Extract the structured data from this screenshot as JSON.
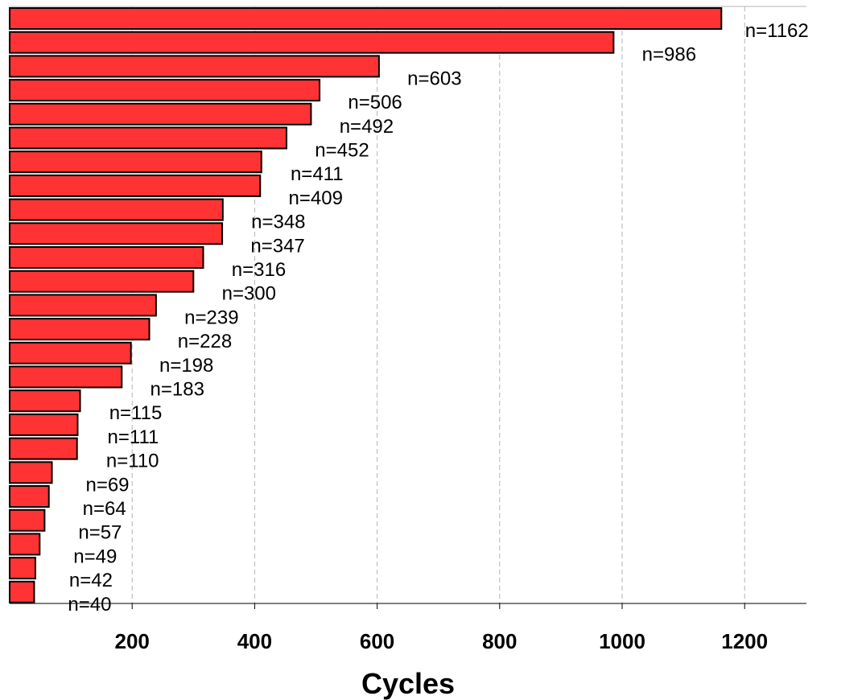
{
  "chart_data": {
    "type": "bar",
    "orientation": "horizontal",
    "title": "",
    "xlabel": "Cycles",
    "ylabel": "",
    "xlim": [
      0,
      1300
    ],
    "xticks": [
      200,
      400,
      600,
      800,
      1000,
      1200
    ],
    "grid": "vertical dashed",
    "bar_color": "#ff3333",
    "values": [
      1162,
      986,
      603,
      506,
      492,
      452,
      411,
      409,
      348,
      347,
      316,
      300,
      239,
      228,
      198,
      183,
      115,
      111,
      110,
      69,
      64,
      57,
      49,
      42,
      40
    ],
    "data_labels": [
      "n=1162",
      "n=986",
      "n=603",
      "n=506",
      "n=492",
      "n=452",
      "n=411",
      "n=409",
      "n=348",
      "n=347",
      "n=316",
      "n=300",
      "n=239",
      "n=228",
      "n=198",
      "n=183",
      "n=115",
      "n=111",
      "n=110",
      "n=69",
      "n=64",
      "n=57",
      "n=49",
      "n=42",
      "n=40"
    ]
  }
}
